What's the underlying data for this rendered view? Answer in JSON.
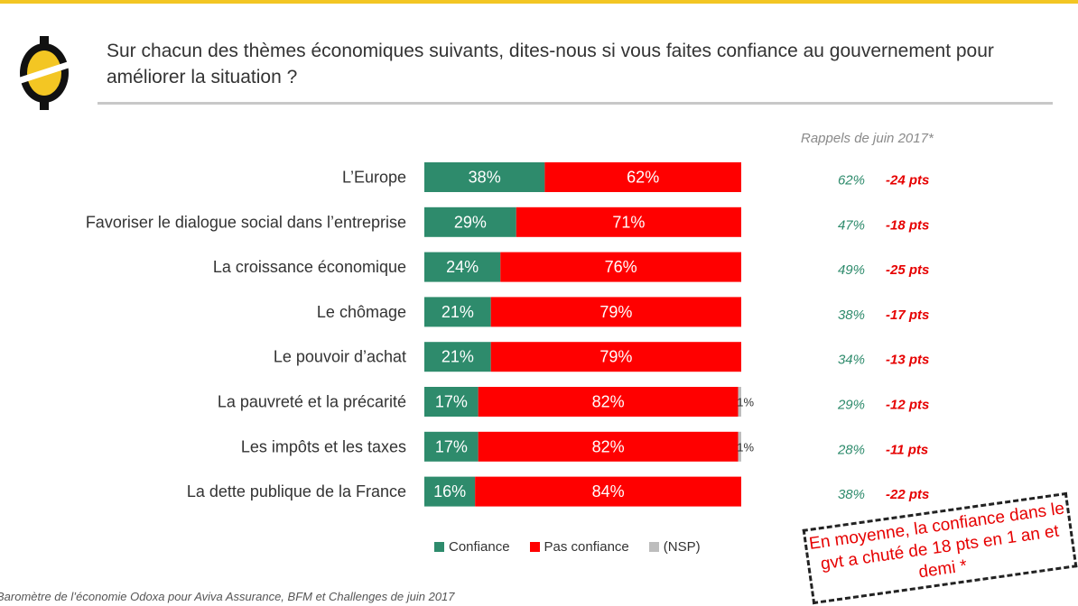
{
  "header": {
    "question": "Sur chacun des thèmes économiques suivants, dites-nous si vous faites confiance au gouvernement pour améliorer la situation ?"
  },
  "logo": {
    "icon": "odoxa-logo-icon",
    "color": "#f3c623"
  },
  "rappels": {
    "title": "Rappels de juin 2017*"
  },
  "legend": {
    "confiance": "Confiance",
    "pas_confiance": "Pas confiance",
    "nsp": "(NSP)"
  },
  "colors": {
    "confiance": "#2e8b6c",
    "pas_confiance": "#ff0000",
    "nsp": "#bdbdbd",
    "accent": "#f3c623"
  },
  "chart_data": {
    "type": "bar",
    "orientation": "horizontal",
    "stacked": true,
    "normalized": true,
    "categories": [
      "L’Europe",
      "Favoriser le dialogue social dans l’entreprise",
      "La croissance économique",
      "Le chômage",
      "Le pouvoir d’achat",
      "La pauvreté et la précarité",
      "Les impôts et les taxes",
      "La dette publique de la France"
    ],
    "series": [
      {
        "name": "Confiance",
        "values": [
          38,
          29,
          24,
          21,
          21,
          17,
          17,
          16
        ],
        "labels": [
          "38%",
          "29%",
          "24%",
          "21%",
          "21%",
          "17%",
          "17%",
          "16%"
        ]
      },
      {
        "name": "Pas confiance",
        "values": [
          62,
          71,
          76,
          79,
          79,
          82,
          82,
          84
        ],
        "labels": [
          "62%",
          "71%",
          "76%",
          "79%",
          "79%",
          "82%",
          "82%",
          "84%"
        ]
      },
      {
        "name": "(NSP)",
        "values": [
          0,
          0,
          0,
          0,
          0,
          1,
          1,
          0
        ],
        "labels": [
          "",
          "",
          "",
          "",
          "",
          "1%",
          "1%",
          ""
        ]
      }
    ],
    "rappels_juin_2017": [
      "62%",
      "47%",
      "49%",
      "38%",
      "34%",
      "29%",
      "28%",
      "38%"
    ],
    "evolution": [
      "-24 pts",
      "-18 pts",
      "-25 pts",
      "-17 pts",
      "-13 pts",
      "-12 pts",
      "-11 pts",
      "-22 pts"
    ],
    "xlim": [
      0,
      100
    ],
    "legend_position": "bottom"
  },
  "callout": {
    "text": "En moyenne, la confiance dans le gvt a chuté de 18 pts en 1 an et demi *"
  },
  "source": "Baromètre de l’économie Odoxa pour Aviva Assurance, BFM et Challenges de juin 2017"
}
